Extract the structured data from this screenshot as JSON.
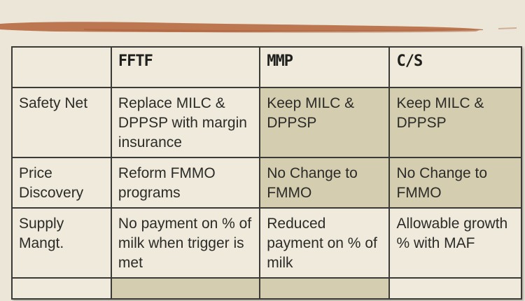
{
  "table": {
    "headers": [
      "",
      "FFTF",
      "MMP",
      "C/S"
    ],
    "rows": [
      {
        "label": "Safety Net",
        "cells": [
          "Replace MILC & DPPSP with margin insurance",
          "Keep MILC & DPPSP",
          "Keep MILC & DPPSP"
        ]
      },
      {
        "label": "Price Discovery",
        "cells": [
          "Reform FMMO programs",
          "No Change to FMMO",
          "No Change to FMMO"
        ]
      },
      {
        "label": "Supply Mangt.",
        "cells": [
          "No payment on % of milk when trigger is met",
          "Reduced payment on % of milk",
          "Allowable growth % with MAF"
        ]
      }
    ]
  },
  "colors": {
    "background": "#ece6d8",
    "cell_light": "#efeadb",
    "cell_dark": "#d5cdb0",
    "brush_stroke": "#b9714a",
    "border": "#3a3a36"
  }
}
